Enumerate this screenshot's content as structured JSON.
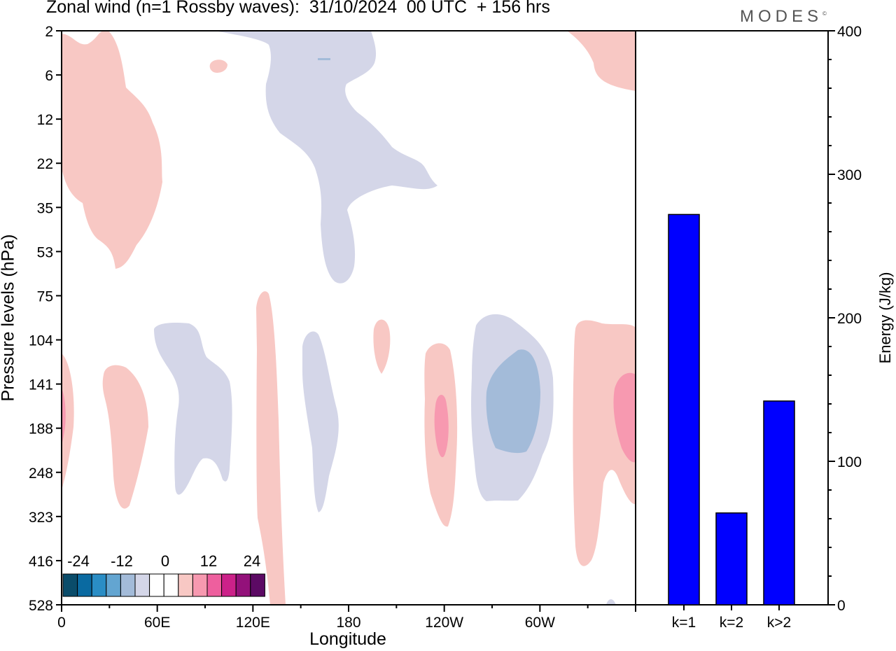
{
  "header": {
    "title": "Zonal wind (n=1 Rossby waves):  31/10/2024  00 UTC  + 156 hrs",
    "logo": "MODES",
    "logo_mark": "©"
  },
  "colors": {
    "neg_levels": [
      "#0a4c6a",
      "#0a6aa1",
      "#2a8dc5",
      "#63a5d1",
      "#a3bbd9",
      "#d4d6e8"
    ],
    "zero": "#ffffff",
    "pos_levels": [
      "#f8c8c4",
      "#f799b0",
      "#ee5f9e",
      "#cc2189",
      "#93117a",
      "#5c0a64"
    ],
    "bar": "#0000ff"
  },
  "chart_data": [
    {
      "type": "heatmap",
      "title": "Zonal wind (n=1 Rossby waves):  31/10/2024  00 UTC  + 156 hrs",
      "xlabel": "Longitude",
      "ylabel": "Pressure levels (hPa)",
      "x_ticks": [
        "0",
        "60E",
        "120E",
        "180",
        "120W",
        "60W"
      ],
      "x_range_deg": [
        0,
        360
      ],
      "y_levels_hPa": [
        2,
        6,
        12,
        22,
        35,
        53,
        75,
        104,
        141,
        188,
        248,
        323,
        416,
        528
      ],
      "colorbar": {
        "labels": [
          "-24",
          "-12",
          "0",
          "12",
          "24"
        ],
        "levels": [
          -30,
          -24,
          -18,
          -12,
          -6,
          -3,
          3,
          6,
          12,
          18,
          24,
          30
        ]
      },
      "features": [
        {
          "sign": "positive",
          "lon": [
            0,
            60
          ],
          "levels_hPa": [
            2,
            53
          ],
          "level": "weak"
        },
        {
          "sign": "negative",
          "lon": [
            127,
            237
          ],
          "levels_hPa": [
            2,
            75
          ],
          "level": "weak"
        },
        {
          "sign": "positive",
          "lon": [
            335,
            360
          ],
          "levels_hPa": [
            2,
            12
          ],
          "level": "weak"
        },
        {
          "sign": "negative",
          "lon": [
            58,
            108
          ],
          "levels_hPa": [
            104,
            248
          ],
          "level": "weak"
        },
        {
          "sign": "positive",
          "lon": [
            122,
            140
          ],
          "levels_hPa": [
            75,
            528
          ],
          "level": "weak"
        },
        {
          "sign": "negative",
          "lon": [
            150,
            175
          ],
          "levels_hPa": [
            104,
            323
          ],
          "level": "weak"
        },
        {
          "sign": "positive",
          "lon": [
            228,
            250
          ],
          "levels_hPa": [
            104,
            323
          ],
          "level": "moderate"
        },
        {
          "sign": "negative",
          "lon": [
            256,
            310
          ],
          "levels_hPa": [
            104,
            323
          ],
          "level": "moderate"
        },
        {
          "sign": "positive",
          "lon": [
            320,
            360
          ],
          "levels_hPa": [
            104,
            416
          ],
          "level": "moderate"
        }
      ]
    },
    {
      "type": "bar",
      "ylabel": "Energy (J/kg)",
      "categories": [
        "k=1",
        "k=2",
        "k>2"
      ],
      "values": [
        272,
        64,
        142
      ],
      "ylim": [
        0,
        400
      ],
      "y_ticks": [
        "0",
        "100",
        "200",
        "300",
        "400"
      ]
    }
  ]
}
